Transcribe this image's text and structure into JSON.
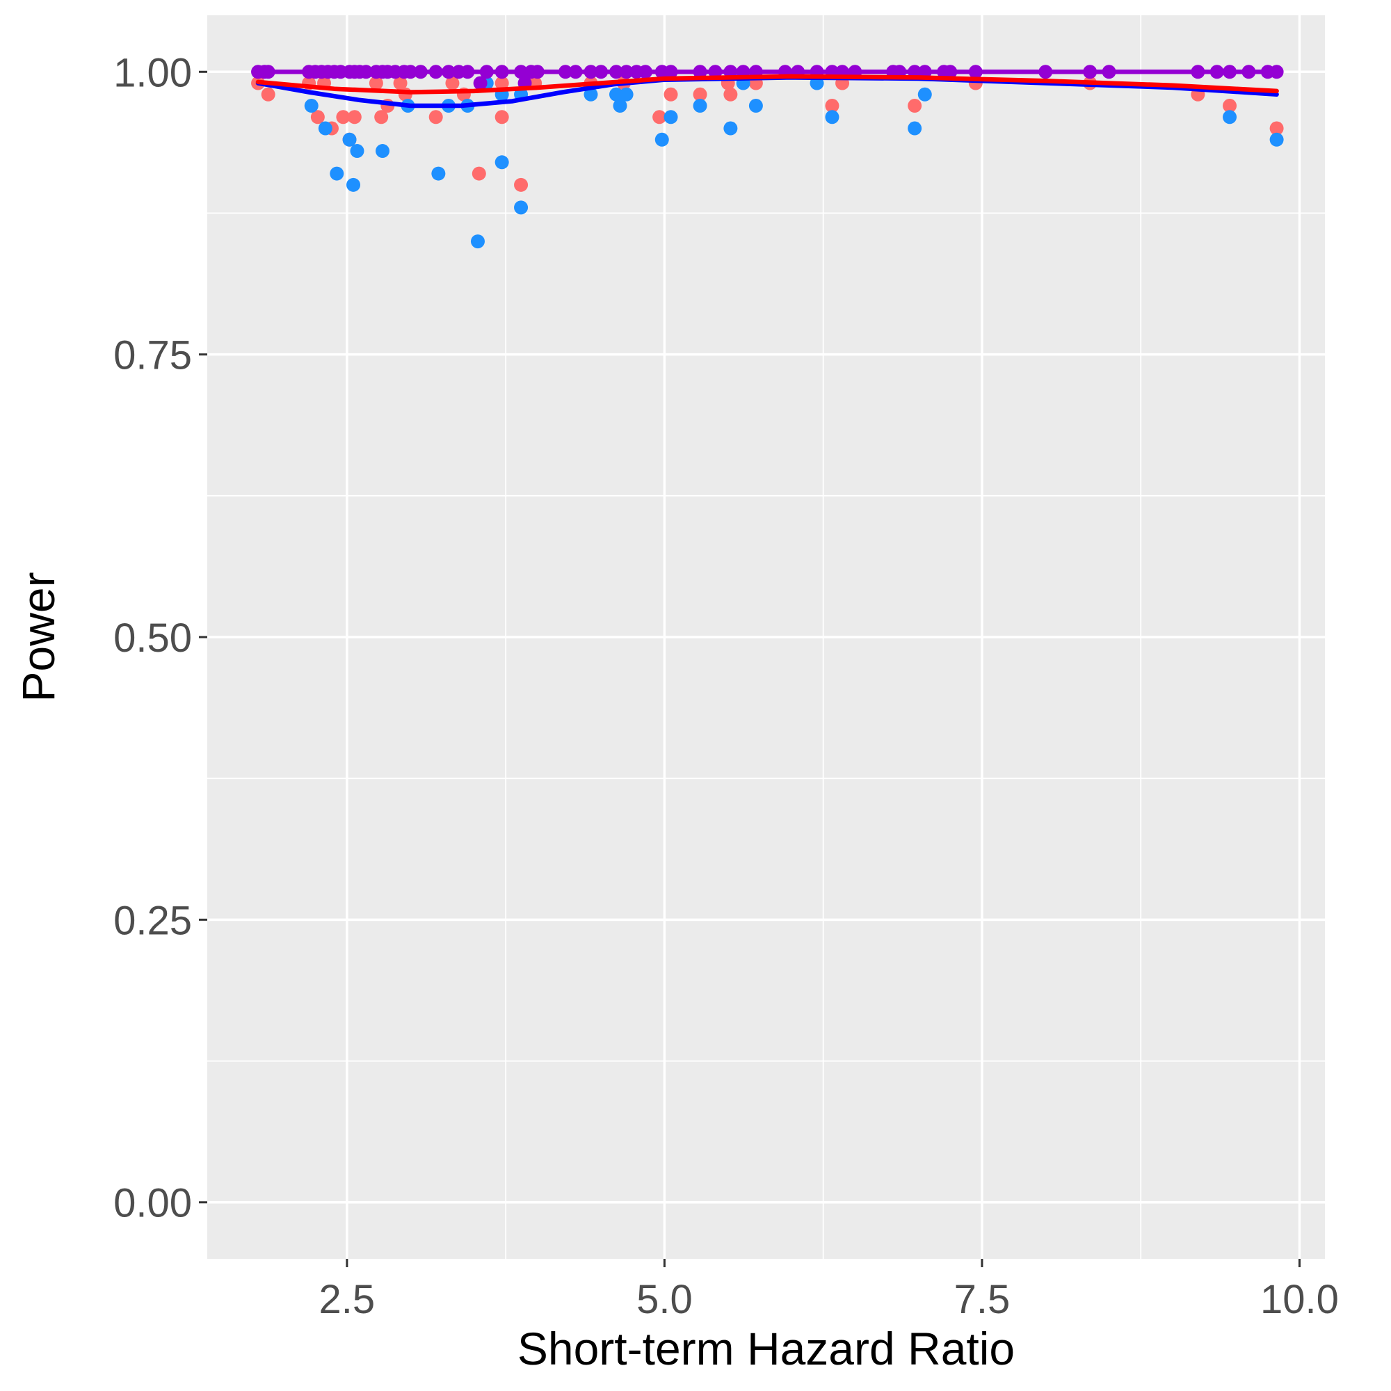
{
  "chart_data": {
    "type": "scatter",
    "xlabel": "Short-term Hazard Ratio",
    "ylabel": "Power",
    "xlim": [
      1.4,
      10.2
    ],
    "ylim": [
      -0.05,
      1.05
    ],
    "x_ticks": [
      {
        "value": 2.5,
        "label": "2.5"
      },
      {
        "value": 5.0,
        "label": "5.0"
      },
      {
        "value": 7.5,
        "label": "7.5"
      },
      {
        "value": 10.0,
        "label": "10.0"
      }
    ],
    "y_ticks": [
      {
        "value": 0.0,
        "label": "0.00"
      },
      {
        "value": 0.25,
        "label": "0.25"
      },
      {
        "value": 0.5,
        "label": "0.50"
      },
      {
        "value": 0.75,
        "label": "0.75"
      },
      {
        "value": 1.0,
        "label": "1.00"
      }
    ],
    "grid": true,
    "legend": "none",
    "panel_color": "#ebebeb",
    "series": [
      {
        "color": "#ff6b6b",
        "points": [
          [
            1.8,
            0.99
          ],
          [
            1.88,
            0.98
          ],
          [
            2.2,
            0.99
          ],
          [
            2.27,
            0.96
          ],
          [
            2.32,
            0.99
          ],
          [
            2.38,
            0.95
          ],
          [
            2.47,
            0.96
          ],
          [
            2.52,
            0.94
          ],
          [
            2.56,
            0.96
          ],
          [
            2.73,
            0.99
          ],
          [
            2.77,
            0.96
          ],
          [
            2.82,
            0.97
          ],
          [
            2.92,
            0.99
          ],
          [
            2.96,
            0.98
          ],
          [
            3.2,
            0.96
          ],
          [
            3.33,
            0.99
          ],
          [
            3.42,
            0.98
          ],
          [
            3.54,
            0.91
          ],
          [
            3.72,
            0.96
          ],
          [
            3.72,
            0.99
          ],
          [
            3.87,
            0.9
          ],
          [
            3.98,
            0.99
          ],
          [
            4.42,
            0.99
          ],
          [
            4.68,
            0.99
          ],
          [
            4.96,
            0.96
          ],
          [
            5.05,
            0.98
          ],
          [
            5.28,
            0.98
          ],
          [
            5.5,
            0.99
          ],
          [
            5.52,
            0.98
          ],
          [
            5.72,
            0.99
          ],
          [
            6.32,
            0.97
          ],
          [
            6.4,
            0.99
          ],
          [
            6.97,
            0.97
          ],
          [
            7.45,
            0.99
          ],
          [
            8.35,
            0.99
          ],
          [
            9.2,
            0.98
          ],
          [
            9.45,
            0.97
          ],
          [
            9.82,
            0.95
          ]
        ]
      },
      {
        "color": "#1e90ff",
        "points": [
          [
            2.22,
            0.97
          ],
          [
            2.33,
            0.95
          ],
          [
            2.42,
            0.91
          ],
          [
            2.52,
            0.94
          ],
          [
            2.55,
            0.9
          ],
          [
            2.58,
            0.93
          ],
          [
            2.78,
            0.93
          ],
          [
            2.98,
            0.97
          ],
          [
            3.22,
            0.91
          ],
          [
            3.3,
            0.97
          ],
          [
            3.45,
            0.97
          ],
          [
            3.53,
            0.85
          ],
          [
            3.6,
            0.99
          ],
          [
            3.72,
            0.92
          ],
          [
            3.72,
            0.98
          ],
          [
            3.87,
            0.88
          ],
          [
            3.87,
            0.98
          ],
          [
            4.42,
            0.98
          ],
          [
            4.62,
            0.98
          ],
          [
            4.65,
            0.97
          ],
          [
            4.7,
            0.98
          ],
          [
            4.98,
            0.94
          ],
          [
            5.05,
            0.96
          ],
          [
            5.28,
            0.97
          ],
          [
            5.52,
            0.95
          ],
          [
            5.62,
            0.99
          ],
          [
            5.72,
            0.97
          ],
          [
            6.2,
            0.99
          ],
          [
            6.32,
            0.96
          ],
          [
            6.97,
            0.95
          ],
          [
            7.05,
            0.98
          ],
          [
            9.45,
            0.96
          ],
          [
            9.82,
            0.94
          ]
        ]
      },
      {
        "color": "#9400d3",
        "points": [
          [
            1.8,
            1.0
          ],
          [
            1.85,
            1.0
          ],
          [
            1.88,
            1.0
          ],
          [
            2.2,
            1.0
          ],
          [
            2.25,
            1.0
          ],
          [
            2.3,
            1.0
          ],
          [
            2.35,
            1.0
          ],
          [
            2.4,
            1.0
          ],
          [
            2.45,
            1.0
          ],
          [
            2.52,
            1.0
          ],
          [
            2.56,
            1.0
          ],
          [
            2.6,
            1.0
          ],
          [
            2.65,
            1.0
          ],
          [
            2.73,
            1.0
          ],
          [
            2.78,
            1.0
          ],
          [
            2.82,
            1.0
          ],
          [
            2.88,
            1.0
          ],
          [
            2.95,
            1.0
          ],
          [
            3.0,
            1.0
          ],
          [
            3.08,
            1.0
          ],
          [
            3.2,
            1.0
          ],
          [
            3.3,
            1.0
          ],
          [
            3.38,
            1.0
          ],
          [
            3.45,
            1.0
          ],
          [
            3.55,
            0.99
          ],
          [
            3.6,
            1.0
          ],
          [
            3.72,
            1.0
          ],
          [
            3.87,
            1.0
          ],
          [
            3.9,
            0.99
          ],
          [
            3.95,
            1.0
          ],
          [
            4.0,
            1.0
          ],
          [
            4.22,
            1.0
          ],
          [
            4.3,
            1.0
          ],
          [
            4.42,
            1.0
          ],
          [
            4.5,
            1.0
          ],
          [
            4.62,
            1.0
          ],
          [
            4.7,
            1.0
          ],
          [
            4.78,
            1.0
          ],
          [
            4.85,
            1.0
          ],
          [
            4.98,
            1.0
          ],
          [
            5.05,
            1.0
          ],
          [
            5.28,
            1.0
          ],
          [
            5.4,
            1.0
          ],
          [
            5.52,
            1.0
          ],
          [
            5.62,
            1.0
          ],
          [
            5.72,
            1.0
          ],
          [
            5.95,
            1.0
          ],
          [
            6.05,
            1.0
          ],
          [
            6.2,
            1.0
          ],
          [
            6.32,
            1.0
          ],
          [
            6.4,
            1.0
          ],
          [
            6.5,
            1.0
          ],
          [
            6.8,
            1.0
          ],
          [
            6.85,
            1.0
          ],
          [
            6.97,
            1.0
          ],
          [
            7.05,
            1.0
          ],
          [
            7.2,
            1.0
          ],
          [
            7.25,
            1.0
          ],
          [
            7.45,
            1.0
          ],
          [
            8.0,
            1.0
          ],
          [
            8.35,
            1.0
          ],
          [
            8.5,
            1.0
          ],
          [
            9.2,
            1.0
          ],
          [
            9.35,
            1.0
          ],
          [
            9.45,
            1.0
          ],
          [
            9.6,
            1.0
          ],
          [
            9.75,
            1.0
          ],
          [
            9.82,
            1.0
          ]
        ]
      }
    ],
    "smooth_lines": [
      {
        "color": "#0000ff",
        "points": [
          [
            1.8,
            0.99
          ],
          [
            2.2,
            0.982
          ],
          [
            2.6,
            0.975
          ],
          [
            3.0,
            0.97
          ],
          [
            3.4,
            0.97
          ],
          [
            3.8,
            0.974
          ],
          [
            4.2,
            0.982
          ],
          [
            4.6,
            0.989
          ],
          [
            5.0,
            0.993
          ],
          [
            6.0,
            0.995
          ],
          [
            7.0,
            0.994
          ],
          [
            8.0,
            0.99
          ],
          [
            9.0,
            0.986
          ],
          [
            9.82,
            0.98
          ]
        ]
      },
      {
        "color": "#ff0000",
        "points": [
          [
            1.8,
            0.991
          ],
          [
            2.4,
            0.985
          ],
          [
            3.0,
            0.982
          ],
          [
            3.5,
            0.983
          ],
          [
            4.0,
            0.986
          ],
          [
            4.5,
            0.99
          ],
          [
            5.0,
            0.994
          ],
          [
            6.0,
            0.996
          ],
          [
            7.0,
            0.995
          ],
          [
            8.0,
            0.992
          ],
          [
            9.0,
            0.988
          ],
          [
            9.82,
            0.983
          ]
        ]
      },
      {
        "color": "#9400d3",
        "points": [
          [
            1.8,
            1.0
          ],
          [
            9.82,
            1.0
          ]
        ]
      }
    ]
  }
}
